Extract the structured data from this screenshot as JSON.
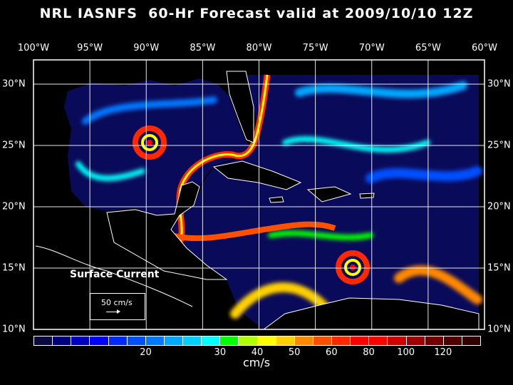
{
  "title": "NRL IASNFS  60-Hr Forecast valid at 2009/10/10 12Z",
  "lon_labels": [
    "100°W",
    "95°W",
    "90°W",
    "85°W",
    "80°W",
    "75°W",
    "70°W",
    "65°W",
    "60°W"
  ],
  "lat_labels": [
    "30°N",
    "25°N",
    "20°N",
    "15°N",
    "10°N"
  ],
  "legend": {
    "title": "Surface Current",
    "reference": "50 cm/s"
  },
  "colorbar": {
    "unit": "cm/s",
    "colors": [
      "#0a0a40",
      "#00007a",
      "#0000c0",
      "#0000ff",
      "#0028ff",
      "#0050ff",
      "#0078ff",
      "#00a8ff",
      "#00d0ff",
      "#00ffff",
      "#00ff00",
      "#b0ff00",
      "#ffff00",
      "#ffd000",
      "#ff8800",
      "#ff5000",
      "#ff2800",
      "#ff0000",
      "#ff0000",
      "#cc0000",
      "#a00000",
      "#700000",
      "#500000",
      "#300000"
    ],
    "labels": [
      "20",
      "30",
      "40",
      "50",
      "60",
      "80",
      "100",
      "120"
    ]
  }
}
